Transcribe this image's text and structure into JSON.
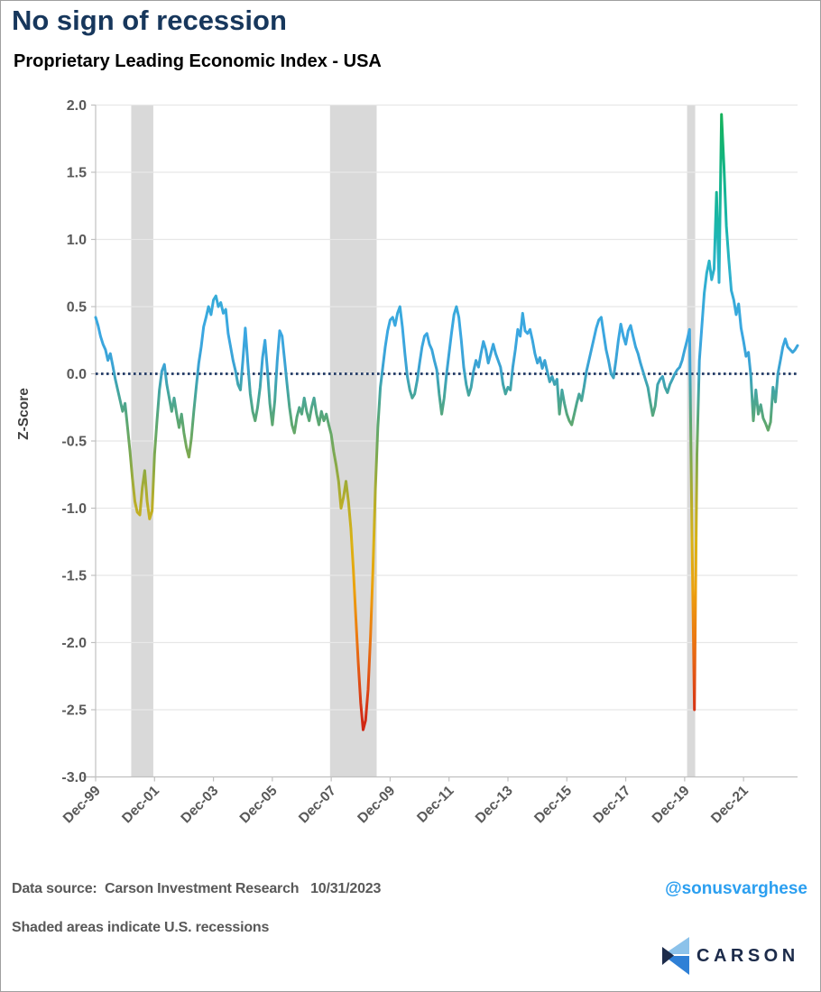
{
  "header": {
    "title": "No sign of recession",
    "subtitle": "Proprietary Leading Economic Index - USA"
  },
  "footer": {
    "source_line": "Data source:  Carson Investment Research   10/31/2023",
    "shaded_note": "Shaded areas indicate U.S. recessions",
    "handle": "@sonusvarghese",
    "handle_color": "#2b9ff0",
    "logo": {
      "text": "CARSON",
      "navy": "#1c2b4a",
      "light_blue": "#8cc2ea",
      "bright_blue": "#2f80d6"
    }
  },
  "chart_data": {
    "type": "line",
    "title": "Proprietary Leading Economic Index - USA",
    "xlabel": "",
    "ylabel": "Z-Score",
    "ylim": [
      -3.0,
      2.0
    ],
    "ytick_step": 0.5,
    "grid": true,
    "legend": "none",
    "zero_reference_line": 0.0,
    "x_tick_labels": [
      "Dec-99",
      "Dec-01",
      "Dec-03",
      "Dec-05",
      "Dec-07",
      "Dec-09",
      "Dec-11",
      "Dec-13",
      "Dec-15",
      "Dec-17",
      "Dec-19",
      "Dec-21"
    ],
    "x_tick_months": [
      0,
      24,
      48,
      72,
      96,
      120,
      144,
      168,
      192,
      216,
      240,
      264
    ],
    "recession_bands_months": [
      [
        14.5,
        23.5
      ],
      [
        95.5,
        114.5
      ],
      [
        241.0,
        244.3
      ]
    ],
    "series": [
      {
        "name": "Proprietary Leading Economic Index (Z-Score)",
        "start": "Dec-1999",
        "frequency": "monthly",
        "values": [
          0.42,
          0.36,
          0.28,
          0.22,
          0.18,
          0.1,
          0.15,
          0.06,
          -0.04,
          -0.12,
          -0.2,
          -0.28,
          -0.22,
          -0.4,
          -0.58,
          -0.78,
          -0.95,
          -1.03,
          -1.05,
          -0.85,
          -0.72,
          -0.95,
          -1.08,
          -1.02,
          -0.6,
          -0.35,
          -0.12,
          0.02,
          0.07,
          -0.08,
          -0.18,
          -0.28,
          -0.18,
          -0.3,
          -0.4,
          -0.3,
          -0.44,
          -0.55,
          -0.62,
          -0.48,
          -0.28,
          -0.1,
          0.08,
          0.2,
          0.35,
          0.42,
          0.5,
          0.44,
          0.55,
          0.58,
          0.5,
          0.53,
          0.45,
          0.48,
          0.3,
          0.2,
          0.1,
          0.02,
          -0.08,
          -0.12,
          0.1,
          0.34,
          0.08,
          -0.15,
          -0.28,
          -0.35,
          -0.25,
          -0.1,
          0.12,
          0.25,
          0.03,
          -0.22,
          -0.38,
          -0.2,
          0.1,
          0.32,
          0.28,
          0.1,
          -0.08,
          -0.25,
          -0.38,
          -0.44,
          -0.32,
          -0.25,
          -0.3,
          -0.18,
          -0.28,
          -0.35,
          -0.25,
          -0.18,
          -0.3,
          -0.38,
          -0.28,
          -0.35,
          -0.3,
          -0.38,
          -0.45,
          -0.58,
          -0.68,
          -0.8,
          -1.0,
          -0.92,
          -0.8,
          -0.95,
          -1.15,
          -1.45,
          -1.8,
          -2.15,
          -2.45,
          -2.65,
          -2.58,
          -2.35,
          -1.95,
          -1.45,
          -0.85,
          -0.4,
          -0.1,
          0.05,
          0.2,
          0.32,
          0.4,
          0.42,
          0.36,
          0.45,
          0.5,
          0.35,
          0.15,
          -0.02,
          -0.12,
          -0.18,
          -0.15,
          -0.05,
          0.08,
          0.2,
          0.28,
          0.3,
          0.22,
          0.18,
          0.1,
          0.03,
          -0.15,
          -0.3,
          -0.18,
          0.0,
          0.15,
          0.3,
          0.44,
          0.5,
          0.42,
          0.25,
          0.05,
          -0.08,
          -0.16,
          -0.1,
          0.02,
          0.1,
          0.05,
          0.15,
          0.24,
          0.18,
          0.08,
          0.15,
          0.22,
          0.15,
          0.1,
          0.05,
          -0.08,
          -0.15,
          -0.1,
          -0.12,
          0.05,
          0.18,
          0.33,
          0.28,
          0.45,
          0.32,
          0.3,
          0.33,
          0.25,
          0.15,
          0.08,
          0.12,
          0.04,
          0.1,
          0.02,
          -0.06,
          -0.02,
          -0.08,
          -0.04,
          -0.3,
          -0.12,
          -0.22,
          -0.3,
          -0.35,
          -0.38,
          -0.3,
          -0.22,
          -0.15,
          -0.2,
          -0.1,
          0.02,
          0.1,
          0.18,
          0.26,
          0.34,
          0.4,
          0.42,
          0.3,
          0.18,
          0.1,
          0.0,
          -0.03,
          0.1,
          0.25,
          0.37,
          0.28,
          0.22,
          0.32,
          0.36,
          0.28,
          0.2,
          0.15,
          0.08,
          0.02,
          -0.04,
          -0.1,
          -0.21,
          -0.31,
          -0.24,
          -0.08,
          -0.04,
          -0.02,
          -0.1,
          -0.14,
          -0.08,
          -0.04,
          0.0,
          0.03,
          0.05,
          0.1,
          0.18,
          0.25,
          0.33,
          -1.2,
          -2.5,
          -0.6,
          0.1,
          0.35,
          0.6,
          0.75,
          0.84,
          0.7,
          0.78,
          1.35,
          0.68,
          1.93,
          1.55,
          1.1,
          0.85,
          0.62,
          0.55,
          0.44,
          0.52,
          0.34,
          0.24,
          0.13,
          0.16,
          -0.02,
          -0.35,
          -0.12,
          -0.3,
          -0.23,
          -0.33,
          -0.37,
          -0.42,
          -0.36,
          -0.1,
          -0.21,
          0.0,
          0.1,
          0.2,
          0.26,
          0.2,
          0.18,
          0.16,
          0.18,
          0.21
        ]
      }
    ],
    "color_map_stops": [
      {
        "value": 2.0,
        "color": "#17b254"
      },
      {
        "value": 1.5,
        "color": "#12b487"
      },
      {
        "value": 1.1,
        "color": "#1ab6ab"
      },
      {
        "value": 0.8,
        "color": "#2ab3c8"
      },
      {
        "value": 0.55,
        "color": "#37abd9"
      },
      {
        "value": 0.3,
        "color": "#3ba7e2"
      },
      {
        "value": 0.05,
        "color": "#3ba3d3"
      },
      {
        "value": -0.12,
        "color": "#42a5a4"
      },
      {
        "value": -0.35,
        "color": "#5aa774"
      },
      {
        "value": -0.65,
        "color": "#83a94a"
      },
      {
        "value": -0.95,
        "color": "#b7ad28"
      },
      {
        "value": -1.25,
        "color": "#dab214"
      },
      {
        "value": -1.6,
        "color": "#eca20c"
      },
      {
        "value": -1.95,
        "color": "#eb7a11"
      },
      {
        "value": -2.25,
        "color": "#e25214"
      },
      {
        "value": -2.55,
        "color": "#d32d15"
      },
      {
        "value": -2.7,
        "color": "#cd2012"
      }
    ],
    "colors": {
      "recession_band": "#d9d9d9",
      "zero_line": "#1f3864",
      "grid": "#e7e7e7",
      "axis": "#c0c0c0",
      "tick_label": "#595959",
      "axis_label": "#404040"
    }
  }
}
